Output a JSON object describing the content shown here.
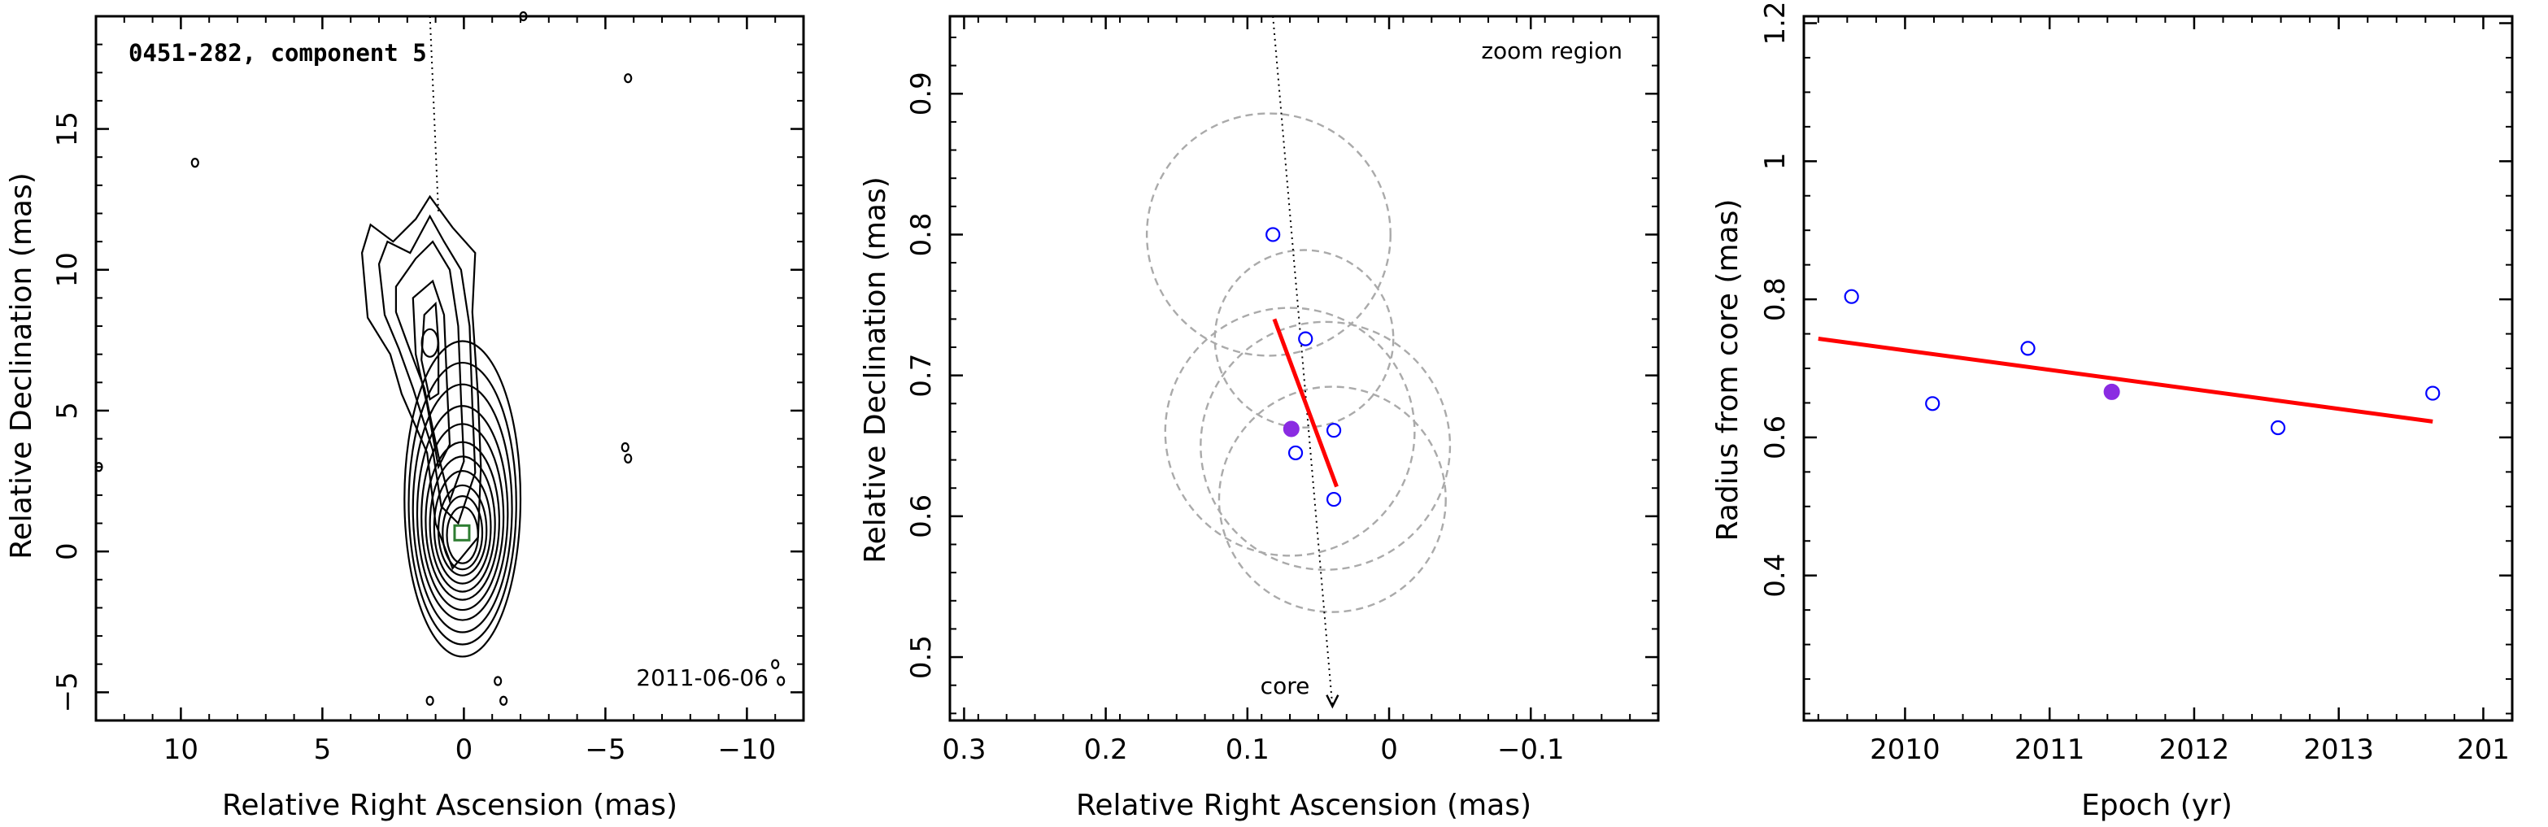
{
  "chart_data": [
    {
      "type": "contour",
      "title": "0451-282, component 5",
      "date_label": "2011-06-06",
      "xlabel": "Relative Right Ascension (mas)",
      "ylabel": "Relative Declination (mas)",
      "xlim": [
        13,
        -12
      ],
      "ylim": [
        -6,
        19
      ],
      "xticks": [
        "10",
        "5",
        "0",
        "−5",
        "−10"
      ],
      "yticks": [
        "−5",
        "0",
        "5",
        "10",
        "15"
      ],
      "component_marker": {
        "x": 0.07,
        "y": 0.66,
        "color": "#2e7d32"
      },
      "jet_axis": [
        {
          "x": 1.2,
          "y": 19
        },
        {
          "x": 0.9,
          "y": 12
        }
      ],
      "grid": false
    },
    {
      "type": "scatter",
      "annotation": "zoom region",
      "core_label": "core",
      "xlabel": "Relative Right Ascension (mas)",
      "ylabel": "Relative Declination (mas)",
      "xlim": [
        0.31,
        -0.19
      ],
      "ylim": [
        0.455,
        0.955
      ],
      "xticks": [
        "0.3",
        "0.2",
        "0.1",
        "0",
        "−0.1"
      ],
      "yticks": [
        "0.5",
        "0.6",
        "0.7",
        "0.8",
        "0.9"
      ],
      "points": [
        {
          "x": 0.082,
          "y": 0.8,
          "filled": false
        },
        {
          "x": 0.059,
          "y": 0.726,
          "filled": false
        },
        {
          "x": 0.039,
          "y": 0.661,
          "filled": false
        },
        {
          "x": 0.066,
          "y": 0.645,
          "filled": false
        },
        {
          "x": 0.039,
          "y": 0.612,
          "filled": false
        },
        {
          "x": 0.069,
          "y": 0.662,
          "filled": true
        }
      ],
      "fit_line": [
        {
          "x": 0.081,
          "y": 0.74
        },
        {
          "x": 0.037,
          "y": 0.621
        }
      ],
      "circles": [
        {
          "x": 0.085,
          "y": 0.8,
          "r": 0.086
        },
        {
          "x": 0.06,
          "y": 0.726,
          "r": 0.063
        },
        {
          "x": 0.07,
          "y": 0.66,
          "r": 0.088
        },
        {
          "x": 0.045,
          "y": 0.65,
          "r": 0.088
        },
        {
          "x": 0.04,
          "y": 0.612,
          "r": 0.08
        }
      ],
      "jet_axis": [
        {
          "x": 0.082,
          "y": 0.955
        },
        {
          "x": 0.04,
          "y": 0.465
        }
      ],
      "colors": {
        "points": "#0000ff",
        "filled": "#8a2be2",
        "fit": "#ff0000",
        "circles": "#aaaaaa"
      },
      "grid": false
    },
    {
      "type": "scatter",
      "xlabel": "Epoch (yr)",
      "ylabel": "Radius from core (mas)",
      "xlim": [
        2009.3,
        2014.2
      ],
      "ylim": [
        0.19,
        1.21
      ],
      "xticks": [
        "2010",
        "2011",
        "2012",
        "2013",
        "201"
      ],
      "yticks": [
        "0.4",
        "0.6",
        "0.8",
        "1",
        "1.2"
      ],
      "points": [
        {
          "x": 2009.63,
          "y": 0.804,
          "filled": false
        },
        {
          "x": 2010.19,
          "y": 0.649,
          "filled": false
        },
        {
          "x": 2010.85,
          "y": 0.729,
          "filled": false
        },
        {
          "x": 2011.43,
          "y": 0.666,
          "filled": true
        },
        {
          "x": 2012.58,
          "y": 0.614,
          "filled": false
        },
        {
          "x": 2013.65,
          "y": 0.664,
          "filled": false
        }
      ],
      "fit_line": [
        {
          "x": 2009.4,
          "y": 0.743
        },
        {
          "x": 2013.65,
          "y": 0.623
        }
      ],
      "colors": {
        "points": "#0000ff",
        "filled": "#8a2be2",
        "fit": "#ff0000"
      },
      "grid": false
    }
  ]
}
